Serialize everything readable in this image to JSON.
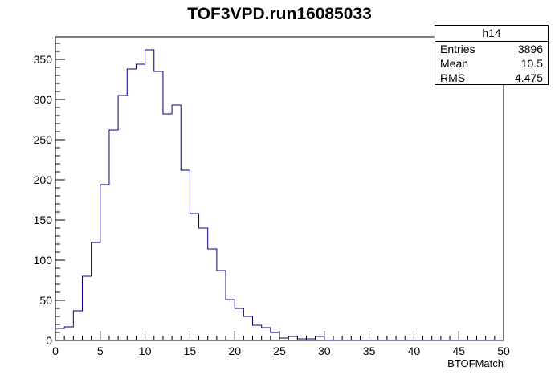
{
  "title": "TOF3VPD.run16085033",
  "stats": {
    "name": "h14",
    "rows": [
      {
        "label": "Entries",
        "value": "3896"
      },
      {
        "label": "Mean",
        "value": "10.5"
      },
      {
        "label": "RMS",
        "value": "4.475"
      }
    ]
  },
  "colors": {
    "line": "#00007f",
    "axis": "#000000"
  },
  "chart_data": {
    "type": "histogram",
    "title": "TOF3VPD.run16085033",
    "xlabel": "BTOFMatch",
    "ylabel": "",
    "xlim": [
      0,
      50
    ],
    "ylim": [
      0,
      378
    ],
    "xticks": [
      0,
      5,
      10,
      15,
      20,
      25,
      30,
      35,
      40,
      45,
      50
    ],
    "yticks": [
      0,
      50,
      100,
      150,
      200,
      250,
      300,
      350
    ],
    "bin_width": 1,
    "bin_edges_start": 0,
    "values": [
      15,
      17,
      37,
      80,
      122,
      194,
      262,
      305,
      338,
      344,
      362,
      335,
      282,
      293,
      212,
      158,
      140,
      114,
      87,
      51,
      40,
      30,
      19,
      16,
      10,
      3,
      5,
      2,
      2,
      5,
      0,
      0,
      0,
      0,
      0,
      0,
      0,
      0,
      0,
      0,
      0,
      0,
      0,
      0,
      0,
      0,
      0,
      0,
      0,
      0
    ],
    "grid": false,
    "legend": "top-right"
  }
}
